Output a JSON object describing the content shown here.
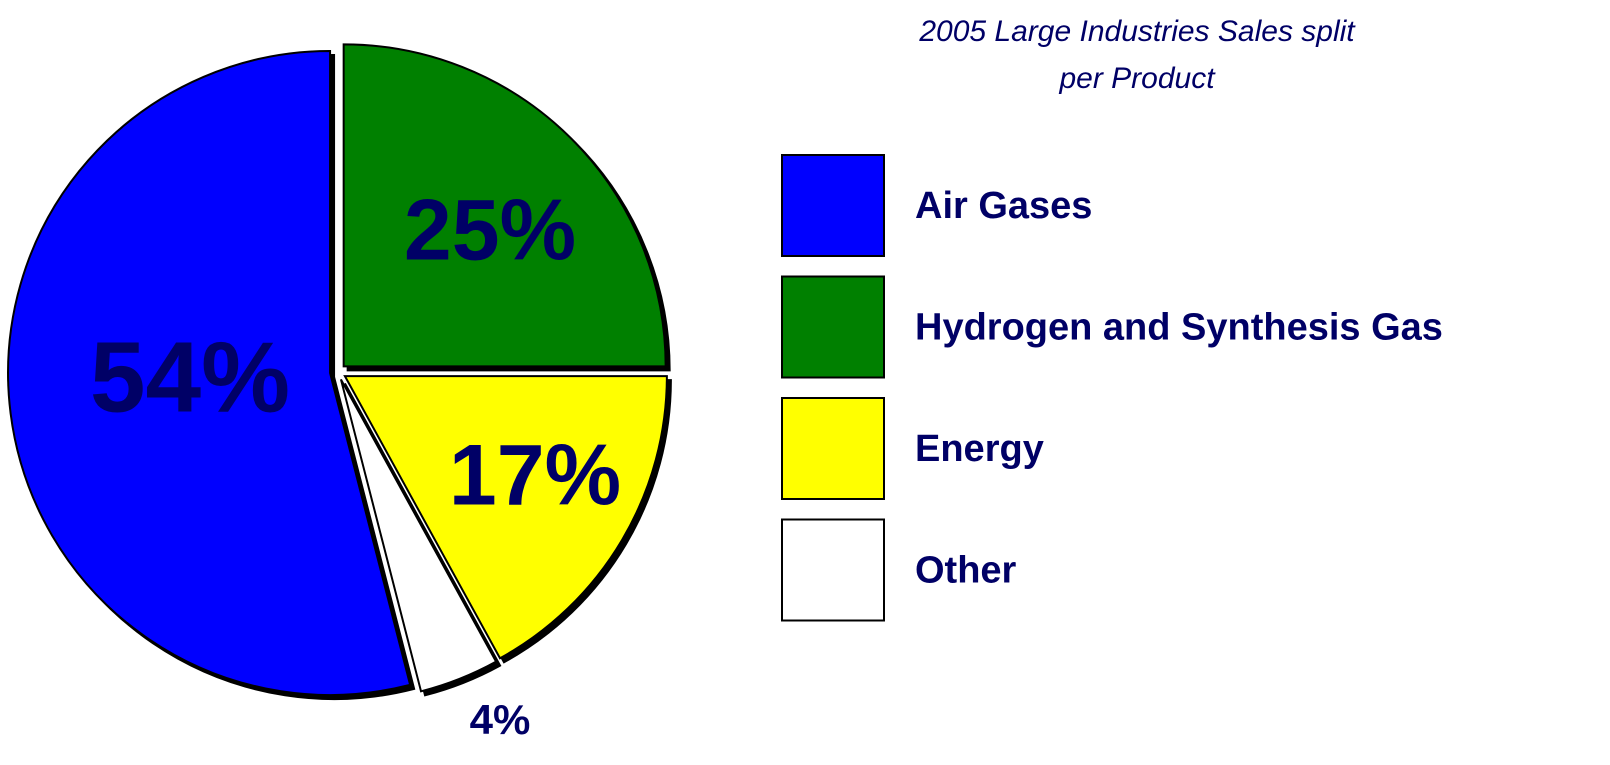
{
  "chart_data": {
    "type": "pie",
    "title": "2005 Large Industries Sales split per Product",
    "categories": [
      "Air Gases",
      "Hydrogen and Synthesis Gas",
      "Energy",
      "Other"
    ],
    "values": [
      54,
      25,
      17,
      4
    ],
    "value_labels": [
      "54%",
      "25%",
      "17%",
      "4%"
    ],
    "colors": [
      "#0000ff",
      "#008000",
      "#ffff00",
      "#ffffff"
    ],
    "legend": "right"
  }
}
